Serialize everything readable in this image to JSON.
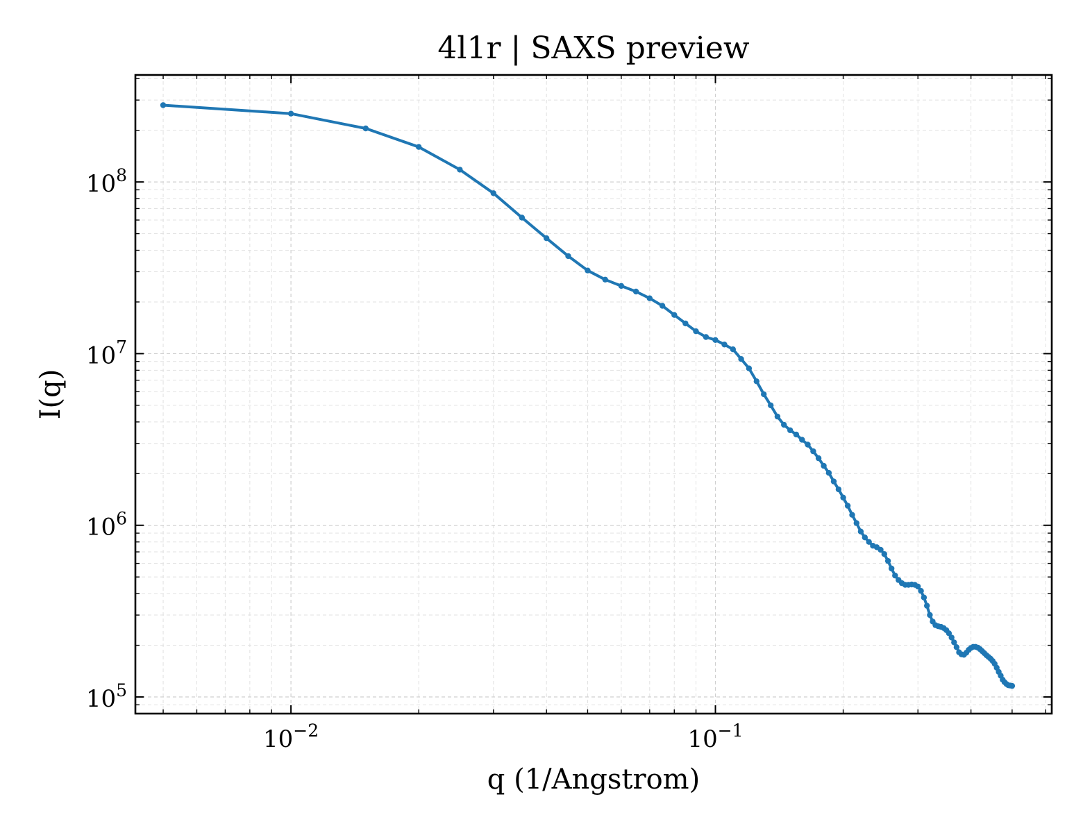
{
  "chart_data": {
    "type": "line",
    "title": "4l1r | SAXS preview",
    "xlabel": "q (1/Angstrom)",
    "ylabel": "I(q)",
    "xscale": "log",
    "yscale": "log",
    "xlim": [
      0.0043,
      0.62
    ],
    "ylim": [
      80000,
      420000000
    ],
    "grid": true,
    "x_ticks": [
      {
        "value": 0.01,
        "base": "10",
        "exp": "−2"
      },
      {
        "value": 0.1,
        "base": "10",
        "exp": "−1"
      }
    ],
    "y_ticks": [
      {
        "value": 100000,
        "base": "10",
        "exp": "5"
      },
      {
        "value": 1000000,
        "base": "10",
        "exp": "6"
      },
      {
        "value": 10000000,
        "base": "10",
        "exp": "7"
      },
      {
        "value": 100000000,
        "base": "10",
        "exp": "8"
      }
    ],
    "series": [
      {
        "color": "#1f77b4",
        "x": [
          0.005,
          0.01,
          0.015,
          0.02,
          0.025,
          0.03,
          0.035,
          0.04,
          0.045,
          0.05,
          0.055,
          0.06,
          0.065,
          0.07,
          0.075,
          0.08,
          0.085,
          0.09,
          0.095,
          0.1,
          0.105,
          0.11,
          0.115,
          0.12,
          0.125,
          0.13,
          0.135,
          0.14,
          0.145,
          0.15,
          0.155,
          0.16,
          0.165,
          0.17,
          0.175,
          0.18,
          0.185,
          0.19,
          0.195,
          0.2,
          0.205,
          0.21,
          0.215,
          0.22,
          0.225,
          0.23,
          0.235,
          0.24,
          0.245,
          0.25,
          0.255,
          0.26,
          0.265,
          0.27,
          0.275,
          0.28,
          0.285,
          0.29,
          0.295,
          0.3,
          0.305,
          0.31,
          0.315,
          0.32,
          0.325,
          0.33,
          0.335,
          0.34,
          0.345,
          0.35,
          0.355,
          0.36,
          0.365,
          0.37,
          0.375,
          0.38,
          0.385,
          0.39,
          0.395,
          0.4,
          0.405,
          0.41,
          0.415,
          0.42,
          0.425,
          0.43,
          0.435,
          0.44,
          0.445,
          0.45,
          0.455,
          0.46,
          0.465,
          0.47,
          0.475,
          0.48,
          0.485,
          0.49,
          0.495,
          0.5
        ],
        "y": [
          280000000,
          250000000,
          205000000,
          160000000,
          118000000,
          86000000,
          62000000,
          47000000,
          37000000,
          30500000,
          27000000,
          24800000,
          23000000,
          21000000,
          19000000,
          16800000,
          15000000,
          13500000,
          12500000,
          12000000,
          11300000,
          10600000,
          9300000,
          8200000,
          6900000,
          5800000,
          5000000,
          4300000,
          3850000,
          3580000,
          3380000,
          3150000,
          2950000,
          2700000,
          2460000,
          2220000,
          2020000,
          1800000,
          1620000,
          1450000,
          1300000,
          1150000,
          1030000,
          920000,
          850000,
          800000,
          760000,
          745000,
          720000,
          680000,
          620000,
          560000,
          510000,
          480000,
          460000,
          450000,
          450000,
          452000,
          450000,
          440000,
          415000,
          380000,
          340000,
          300000,
          275000,
          262000,
          258000,
          256000,
          252000,
          245000,
          235000,
          222000,
          208000,
          195000,
          182000,
          177000,
          176000,
          181000,
          188000,
          193000,
          196000,
          196000,
          194000,
          190000,
          185000,
          180000,
          175000,
          171000,
          167000,
          162000,
          156000,
          148000,
          140000,
          133000,
          126000,
          122000,
          119000,
          117000,
          116500,
          116000
        ]
      }
    ]
  }
}
